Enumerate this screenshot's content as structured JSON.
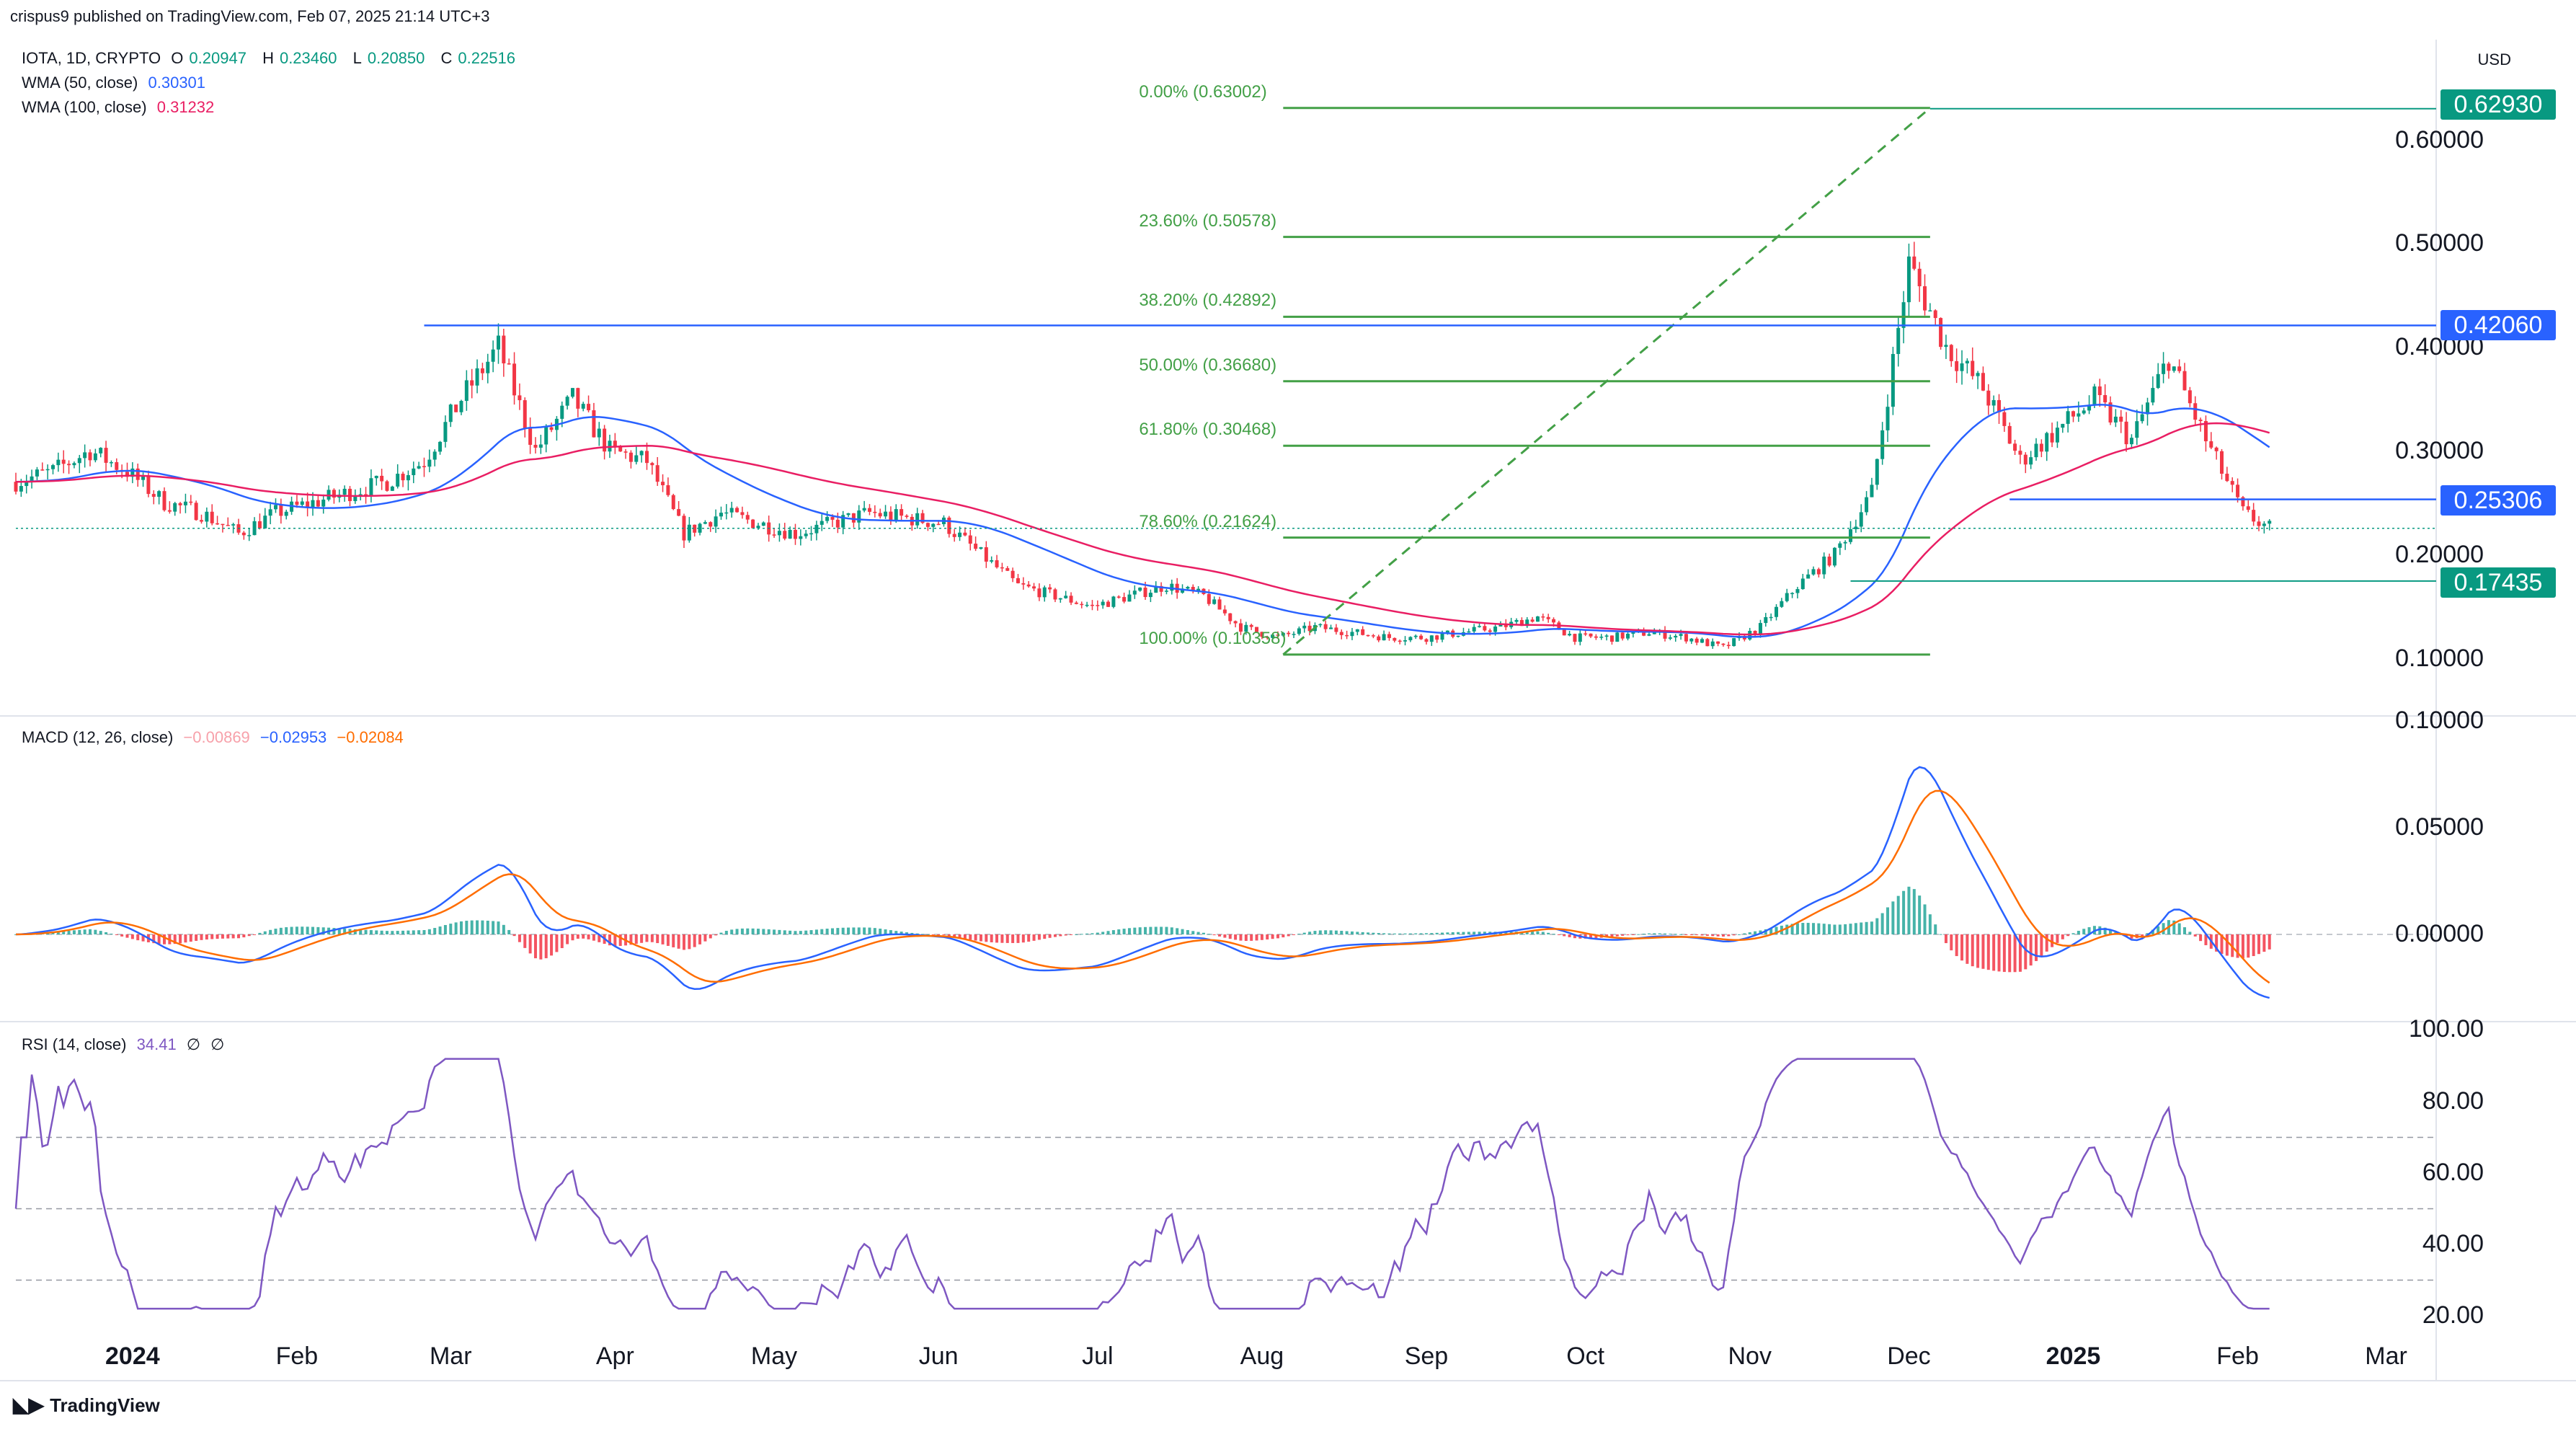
{
  "header": {
    "publisher": "crispus9 published on TradingView.com, Feb 07, 2025 21:14 UTC+3"
  },
  "symbol_line": {
    "symbol": "IOTA, 1D, CRYPTO",
    "open_label": "O",
    "open": "0.20947",
    "high_label": "H",
    "high": "0.23460",
    "low_label": "L",
    "low": "0.20850",
    "close_label": "C",
    "close": "0.22516"
  },
  "indicators": {
    "wma50_label": "WMA (50, close)",
    "wma50_value": "0.30301",
    "wma100_label": "WMA (100, close)",
    "wma100_value": "0.31232",
    "macd_label": "MACD (12, 26, close)",
    "macd_hist": "−0.00869",
    "macd_line": "−0.02953",
    "macd_signal": "−0.02084",
    "rsi_label": "RSI (14, close)",
    "rsi_value": "34.41",
    "rsi_null1": "∅",
    "rsi_null2": "∅"
  },
  "currency": "USD",
  "price_axis": [
    "0.60000",
    "0.50000",
    "0.40000",
    "0.30000",
    "0.20000",
    "0.10000"
  ],
  "macd_axis": [
    "0.10000",
    "0.05000",
    "0.00000"
  ],
  "rsi_axis": [
    "100.00",
    "80.00",
    "60.00",
    "40.00",
    "20.00"
  ],
  "price_tags": {
    "high": "0.62930",
    "resistance": "0.42060",
    "support": "0.25306",
    "low": "0.17435"
  },
  "fib_levels": [
    {
      "label": "0.00% (0.63002)",
      "price": 0.63002
    },
    {
      "label": "23.60% (0.50578)",
      "price": 0.50578
    },
    {
      "label": "38.20% (0.42892)",
      "price": 0.42892
    },
    {
      "label": "50.00% (0.36680)",
      "price": 0.3668
    },
    {
      "label": "61.80% (0.30468)",
      "price": 0.30468
    },
    {
      "label": "78.60% (0.21624)",
      "price": 0.21624
    },
    {
      "label": "100.00% (0.10358)",
      "price": 0.10358
    }
  ],
  "x_axis": [
    {
      "label": "2024",
      "bold": true
    },
    {
      "label": "Feb",
      "bold": false
    },
    {
      "label": "Mar",
      "bold": false
    },
    {
      "label": "Apr",
      "bold": false
    },
    {
      "label": "May",
      "bold": false
    },
    {
      "label": "Jun",
      "bold": false
    },
    {
      "label": "Jul",
      "bold": false
    },
    {
      "label": "Aug",
      "bold": false
    },
    {
      "label": "Sep",
      "bold": false
    },
    {
      "label": "Oct",
      "bold": false
    },
    {
      "label": "Nov",
      "bold": false
    },
    {
      "label": "Dec",
      "bold": false
    },
    {
      "label": "2025",
      "bold": true
    },
    {
      "label": "Feb",
      "bold": false
    },
    {
      "label": "Mar",
      "bold": false
    }
  ],
  "footer": {
    "brand": "TradingView"
  },
  "colors": {
    "up": "#089981",
    "down": "#f23645",
    "wma50": "#2962ff",
    "wma100": "#e91e63",
    "fib": "#43a047",
    "macd": "#2962ff",
    "signal": "#ff6d00",
    "rsi": "#7e57c2"
  },
  "chart_data": {
    "type": "candlestick",
    "title": "IOTA, 1D, CRYPTO",
    "x_range": [
      "2023-12-10",
      "2025-03-05"
    ],
    "y_range": [
      0.05,
      0.68
    ],
    "weekly_close": [
      [
        "2023-12-10",
        0.27
      ],
      [
        "2023-12-17",
        0.28
      ],
      [
        "2023-12-24",
        0.3
      ],
      [
        "2023-12-31",
        0.28
      ],
      [
        "2024-01-07",
        0.25
      ],
      [
        "2024-01-14",
        0.24
      ],
      [
        "2024-01-21",
        0.22
      ],
      [
        "2024-01-28",
        0.24
      ],
      [
        "2024-02-04",
        0.25
      ],
      [
        "2024-02-11",
        0.26
      ],
      [
        "2024-02-18",
        0.27
      ],
      [
        "2024-02-25",
        0.29
      ],
      [
        "2024-03-03",
        0.35
      ],
      [
        "2024-03-10",
        0.4
      ],
      [
        "2024-03-17",
        0.3
      ],
      [
        "2024-03-24",
        0.35
      ],
      [
        "2024-03-31",
        0.3
      ],
      [
        "2024-04-07",
        0.29
      ],
      [
        "2024-04-14",
        0.22
      ],
      [
        "2024-04-21",
        0.24
      ],
      [
        "2024-04-28",
        0.23
      ],
      [
        "2024-05-05",
        0.22
      ],
      [
        "2024-05-12",
        0.23
      ],
      [
        "2024-05-19",
        0.24
      ],
      [
        "2024-05-26",
        0.235
      ],
      [
        "2024-06-02",
        0.23
      ],
      [
        "2024-06-09",
        0.2
      ],
      [
        "2024-06-16",
        0.17
      ],
      [
        "2024-06-23",
        0.16
      ],
      [
        "2024-06-30",
        0.15
      ],
      [
        "2024-07-07",
        0.16
      ],
      [
        "2024-07-14",
        0.17
      ],
      [
        "2024-07-21",
        0.16
      ],
      [
        "2024-07-28",
        0.13
      ],
      [
        "2024-08-04",
        0.12
      ],
      [
        "2024-08-11",
        0.13
      ],
      [
        "2024-08-18",
        0.125
      ],
      [
        "2024-08-25",
        0.12
      ],
      [
        "2024-09-01",
        0.12
      ],
      [
        "2024-09-08",
        0.125
      ],
      [
        "2024-09-15",
        0.13
      ],
      [
        "2024-09-22",
        0.14
      ],
      [
        "2024-09-29",
        0.12
      ],
      [
        "2024-10-06",
        0.12
      ],
      [
        "2024-10-13",
        0.125
      ],
      [
        "2024-10-20",
        0.12
      ],
      [
        "2024-10-27",
        0.11
      ],
      [
        "2024-11-03",
        0.13
      ],
      [
        "2024-11-10",
        0.17
      ],
      [
        "2024-11-17",
        0.2
      ],
      [
        "2024-11-24",
        0.26
      ],
      [
        "2024-12-01",
        0.48
      ],
      [
        "2024-12-08",
        0.4
      ],
      [
        "2024-12-15",
        0.36
      ],
      [
        "2024-12-22",
        0.29
      ],
      [
        "2024-12-29",
        0.32
      ],
      [
        "2025-01-05",
        0.35
      ],
      [
        "2025-01-12",
        0.31
      ],
      [
        "2025-01-19",
        0.39
      ],
      [
        "2025-01-26",
        0.31
      ],
      [
        "2025-02-02",
        0.24
      ],
      [
        "2025-02-07",
        0.22516
      ]
    ],
    "wma50_last": 0.30301,
    "wma100_last": 0.31232,
    "period_high": 0.6293,
    "period_low": 0.10358,
    "rsi_overbought": 70,
    "rsi_oversold": 30,
    "rsi_last": 34.41
  }
}
